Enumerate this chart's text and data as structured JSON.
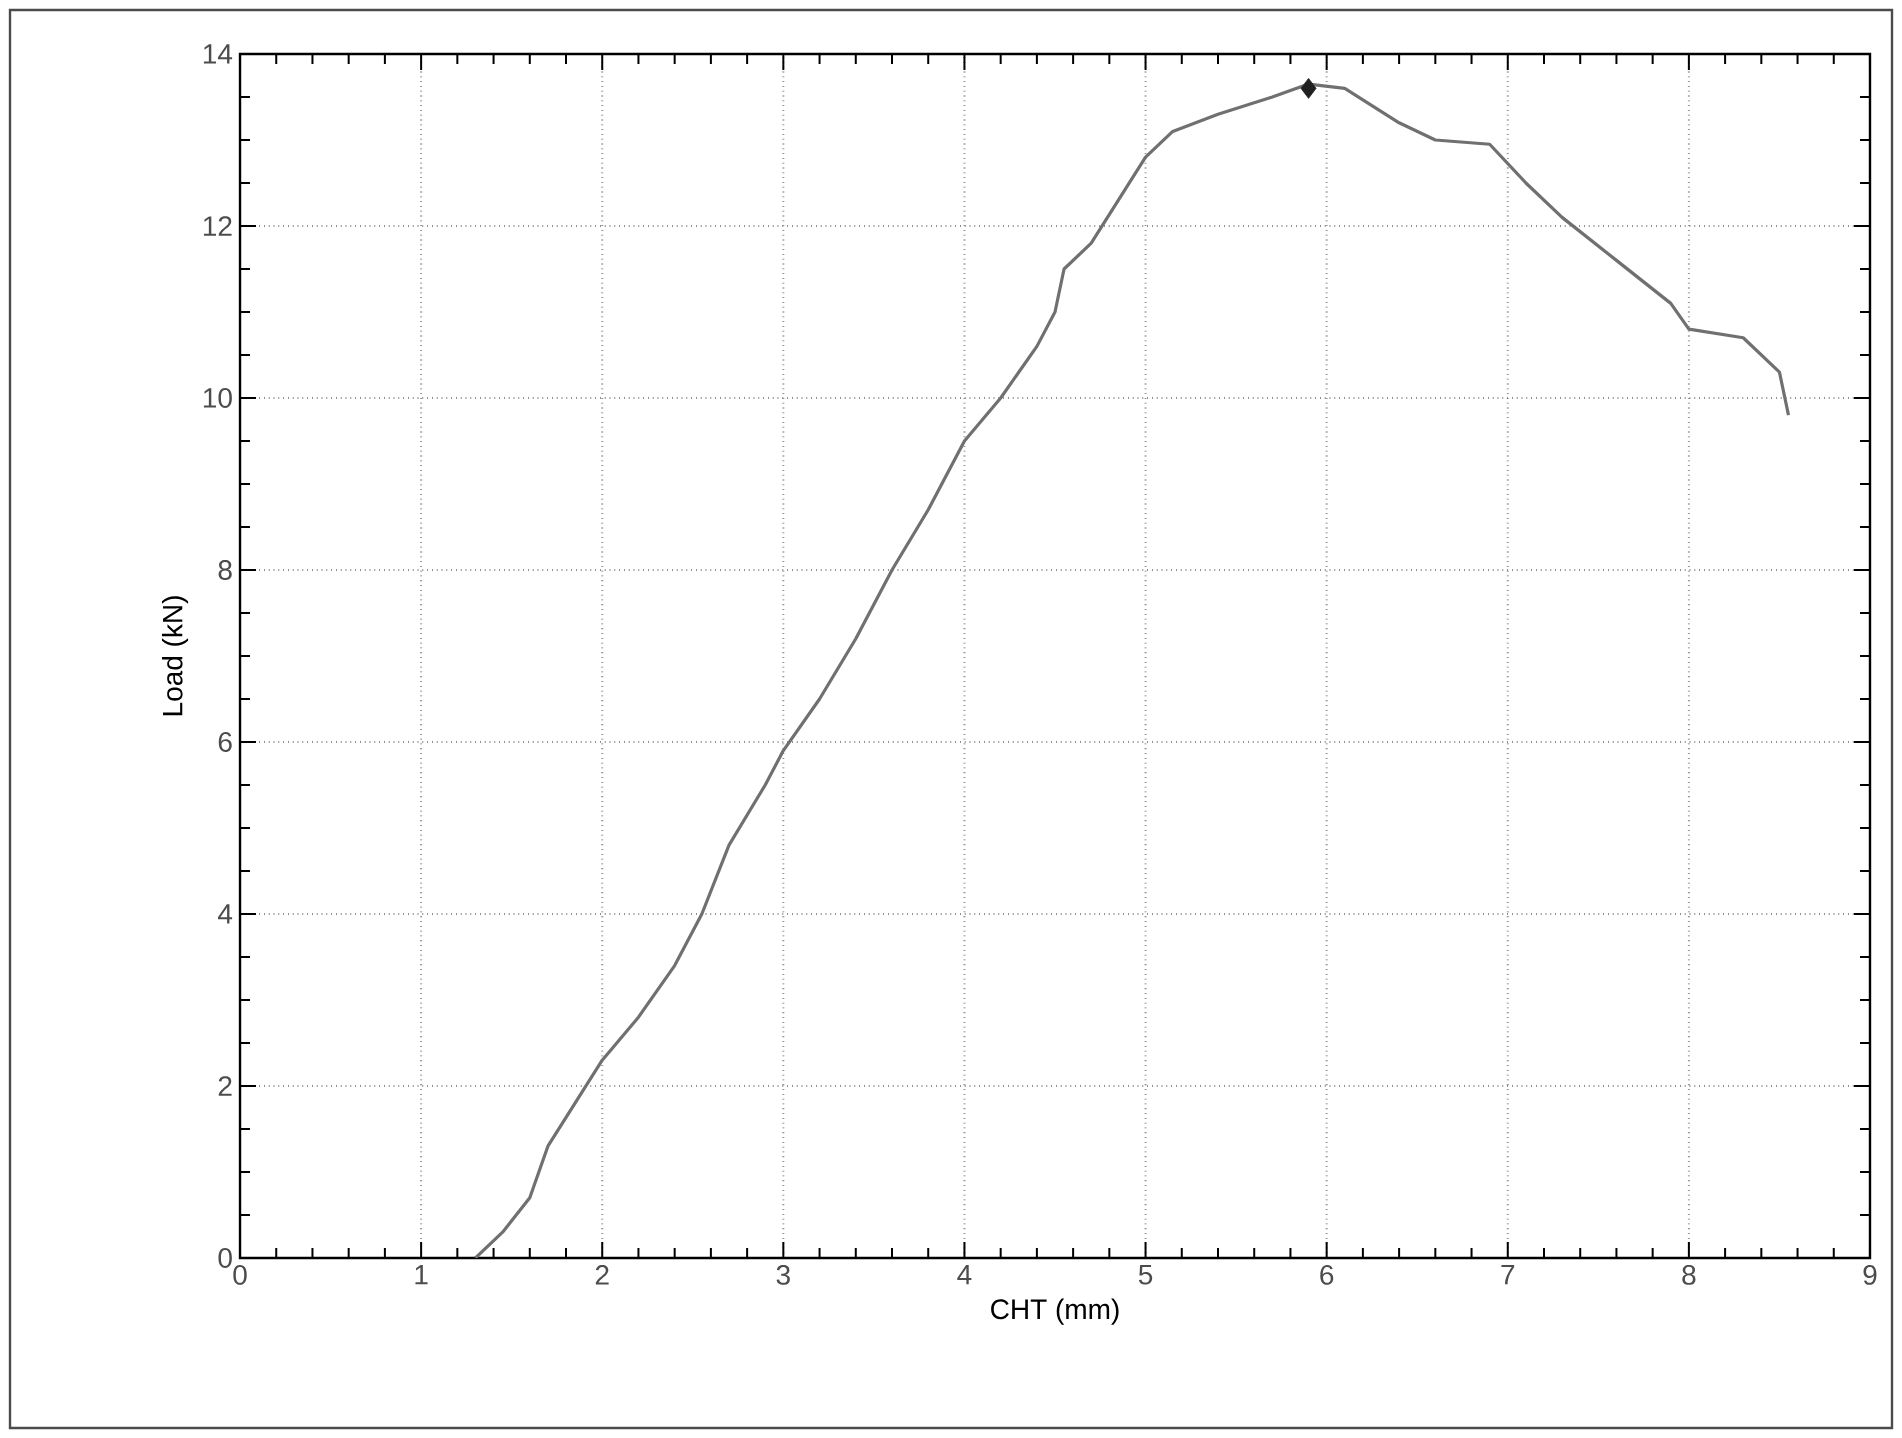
{
  "chart_data": {
    "type": "line",
    "xlabel": "CHT (mm)",
    "ylabel": "Load (kN)",
    "xlim": [
      0,
      9
    ],
    "ylim": [
      0,
      14
    ],
    "xticks": [
      0,
      1,
      2,
      3,
      4,
      5,
      6,
      7,
      8,
      9
    ],
    "yticks": [
      0,
      2,
      4,
      6,
      8,
      10,
      12,
      14
    ],
    "grid": true,
    "series": [
      {
        "color": "#707070",
        "x": [
          1.3,
          1.45,
          1.6,
          1.7,
          1.85,
          2.0,
          2.2,
          2.4,
          2.55,
          2.7,
          2.9,
          3.0,
          3.2,
          3.4,
          3.6,
          3.8,
          4.0,
          4.2,
          4.4,
          4.5,
          4.55,
          4.7,
          4.85,
          5.0,
          5.15,
          5.4,
          5.7,
          5.9,
          6.1,
          6.4,
          6.6,
          6.9,
          7.1,
          7.3,
          7.6,
          7.9,
          8.0,
          8.3,
          8.5,
          8.55
        ],
        "values": [
          0,
          0.3,
          0.7,
          1.3,
          1.8,
          2.3,
          2.8,
          3.4,
          4.0,
          4.8,
          5.5,
          5.9,
          6.5,
          7.2,
          8.0,
          8.7,
          9.5,
          10.0,
          10.6,
          11.0,
          11.5,
          11.8,
          12.3,
          12.8,
          13.1,
          13.3,
          13.5,
          13.65,
          13.6,
          13.2,
          13.0,
          12.95,
          12.5,
          12.1,
          11.6,
          11.1,
          10.8,
          10.7,
          10.3,
          9.8
        ]
      },
      {
        "type": "scatter",
        "marker": "diamond",
        "color": "#202020",
        "x": [
          5.9
        ],
        "values": [
          13.6
        ]
      }
    ]
  }
}
